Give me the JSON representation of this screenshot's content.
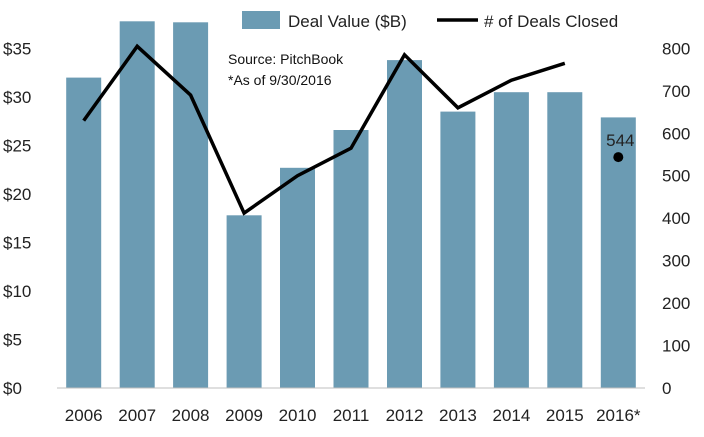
{
  "chart_data": {
    "type": "bar",
    "categories": [
      "2006",
      "2007",
      "2008",
      "2009",
      "2010",
      "2011",
      "2012",
      "2013",
      "2014",
      "2015",
      "2016*"
    ],
    "series": [
      {
        "name": "Deal Value ($B)",
        "type": "bar",
        "axis": "left",
        "color": "#6b9bb3",
        "values": [
          32.0,
          37.8,
          37.7,
          17.8,
          22.7,
          26.6,
          33.8,
          28.5,
          30.5,
          30.5,
          27.9
        ]
      },
      {
        "name": "# of Deals Closed",
        "type": "line",
        "axis": "right",
        "color": "#000000",
        "values": [
          630,
          805,
          690,
          412,
          500,
          565,
          785,
          660,
          725,
          765,
          null
        ]
      },
      {
        "name": "",
        "type": "point",
        "axis": "right",
        "color": "#000000",
        "values": [
          null,
          null,
          null,
          null,
          null,
          null,
          null,
          null,
          null,
          null,
          544
        ],
        "label": "544"
      }
    ],
    "y_left": {
      "ticks": [
        "$0",
        "$5",
        "$10",
        "$15",
        "$20",
        "$25",
        "$30",
        "$35"
      ],
      "tick_values": [
        0,
        5,
        10,
        15,
        20,
        25,
        30,
        35
      ],
      "ylim": [
        0,
        40
      ]
    },
    "y_right": {
      "ticks": [
        "0",
        "100",
        "200",
        "300",
        "400",
        "500",
        "600",
        "700",
        "800"
      ],
      "tick_values": [
        0,
        100,
        200,
        300,
        400,
        500,
        600,
        700,
        800
      ],
      "ylim": [
        0,
        914
      ]
    },
    "annotations": [
      "Source: PitchBook",
      "*As of 9/30/2016"
    ],
    "legend": {
      "placement": "top",
      "items": [
        "Deal Value ($B)",
        "# of Deals Closed"
      ]
    },
    "grid": false
  }
}
